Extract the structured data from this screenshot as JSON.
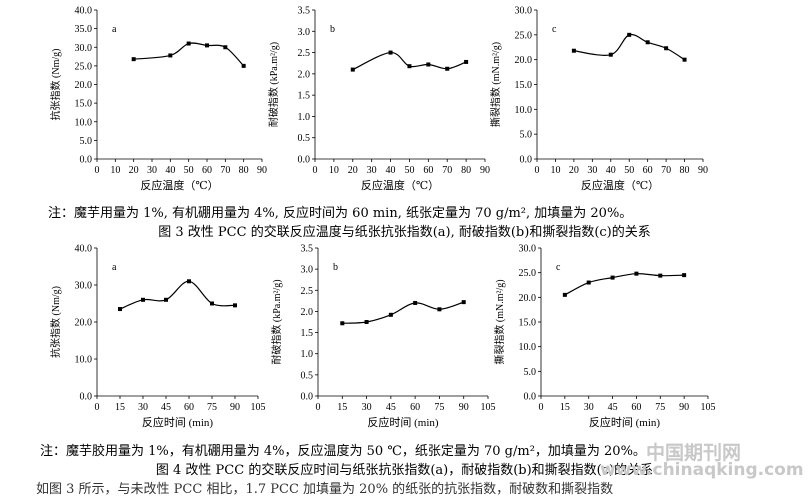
{
  "figure3": {
    "note": "注：魔芋用量为 1%, 有机硼用量为 4%, 反应时间为 60 min, 纸张定量为 70 g/m², 加填量为 20%。",
    "caption": "图 3 改性 PCC 的交联反应温度与纸张抗张指数(a), 耐破指数(b)和撕裂指数(c)的关系"
  },
  "figure4": {
    "note": "注：魔芋胶用量为 1%，有机硼用量为 4%，反应温度为 50 ℃，纸张定量为 70 g/m²，加填量为 20%。",
    "caption": "图 4 改性 PCC 的交联反应时间与纸张抗张指数(a)，耐破指数(b)和撕裂指数(c)的关系"
  },
  "bottom_text": "如图 3 所示，与未改性 PCC 相比，1.7 PCC 加填量为 20% 的纸张的抗张指数，耐破数和撕裂指数",
  "watermark": {
    "line1": "中国期刊网",
    "line2": "www.chinaqking.com"
  },
  "chart_data": [
    {
      "id": "3a",
      "type": "line",
      "panel_label": "a",
      "xlabel": "反应温度（℃）",
      "ylabel": "抗张指数 (Nm/g)",
      "xlim": [
        0,
        90
      ],
      "xticks": [
        0,
        10,
        20,
        30,
        40,
        50,
        60,
        70,
        80,
        90
      ],
      "ylim": [
        0,
        40
      ],
      "yticks": [
        "0.0",
        "5.0",
        "10.0",
        "15.0",
        "20.0",
        "25.0",
        "30.0",
        "35.0",
        "40.0"
      ],
      "x": [
        20,
        40,
        50,
        60,
        70,
        80
      ],
      "y": [
        26.8,
        27.8,
        31.0,
        30.5,
        30.0,
        25.0
      ]
    },
    {
      "id": "3b",
      "type": "line",
      "panel_label": "b",
      "xlabel": "反应温度（℃）",
      "ylabel": "耐破指数 (kPa.m²/g)",
      "xlim": [
        0,
        90
      ],
      "xticks": [
        0,
        10,
        20,
        30,
        40,
        50,
        60,
        70,
        80,
        90
      ],
      "ylim": [
        0,
        3.5
      ],
      "yticks": [
        "0.0",
        "0.5",
        "1.0",
        "1.5",
        "2.0",
        "2.5",
        "3.0",
        "3.5"
      ],
      "x": [
        20,
        40,
        50,
        60,
        70,
        80
      ],
      "y": [
        2.1,
        2.5,
        2.18,
        2.22,
        2.12,
        2.28
      ]
    },
    {
      "id": "3c",
      "type": "line",
      "panel_label": "c",
      "xlabel": "反应温度（℃）",
      "ylabel": "撕裂指数 (mN.m²/g)",
      "xlim": [
        0,
        90
      ],
      "xticks": [
        0,
        10,
        20,
        30,
        40,
        50,
        60,
        70,
        80,
        90
      ],
      "ylim": [
        0,
        30
      ],
      "yticks": [
        "0.0",
        "5.0",
        "10.0",
        "15.0",
        "20.0",
        "25.0",
        "30.0"
      ],
      "x": [
        20,
        40,
        50,
        60,
        70,
        80
      ],
      "y": [
        21.8,
        21.0,
        25.0,
        23.5,
        22.3,
        20.0
      ]
    },
    {
      "id": "4a",
      "type": "line",
      "panel_label": "a",
      "xlabel": "反应时间 (min)",
      "ylabel": "抗张指数 (Nm/g)",
      "xlim": [
        0,
        105
      ],
      "xticks": [
        0,
        15,
        30,
        45,
        60,
        75,
        90,
        105
      ],
      "ylim": [
        0,
        40
      ],
      "yticks": [
        "0.0",
        "10.0",
        "20.0",
        "30.0",
        "40.0"
      ],
      "x": [
        15,
        30,
        45,
        60,
        75,
        90
      ],
      "y": [
        23.5,
        26.0,
        26.0,
        31.0,
        25.0,
        24.5
      ]
    },
    {
      "id": "4b",
      "type": "line",
      "panel_label": "b",
      "xlabel": "反应时间 (min)",
      "ylabel": "耐破指数 (kPa.m²/g)",
      "xlim": [
        0,
        105
      ],
      "xticks": [
        0,
        15,
        30,
        45,
        60,
        75,
        90,
        105
      ],
      "ylim": [
        0,
        3.5
      ],
      "yticks": [
        "0.0",
        "0.5",
        "1.0",
        "1.5",
        "2.0",
        "2.5",
        "3.0",
        "3.5"
      ],
      "x": [
        15,
        30,
        45,
        60,
        75,
        90
      ],
      "y": [
        1.72,
        1.75,
        1.92,
        2.2,
        2.05,
        2.22
      ]
    },
    {
      "id": "4c",
      "type": "line",
      "panel_label": "c",
      "xlabel": "反应时间 (min)",
      "ylabel": "撕裂指数 (mN.m²/g)",
      "xlim": [
        0,
        105
      ],
      "xticks": [
        0,
        15,
        30,
        45,
        60,
        75,
        90,
        105
      ],
      "ylim": [
        0,
        30
      ],
      "yticks": [
        "0.0",
        "5.0",
        "10.0",
        "15.0",
        "20.0",
        "25.0",
        "30.0"
      ],
      "x": [
        15,
        30,
        45,
        60,
        75,
        90
      ],
      "y": [
        20.5,
        23.0,
        24.0,
        24.8,
        24.4,
        24.5
      ]
    }
  ]
}
